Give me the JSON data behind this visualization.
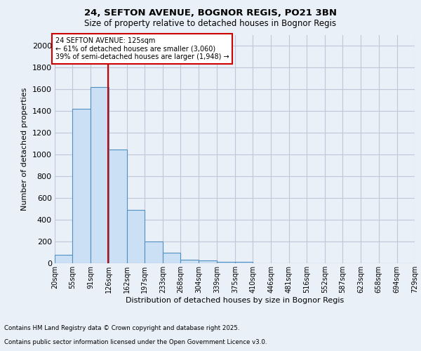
{
  "title1": "24, SEFTON AVENUE, BOGNOR REGIS, PO21 3BN",
  "title2": "Size of property relative to detached houses in Bognor Regis",
  "xlabel": "Distribution of detached houses by size in Bognor Regis",
  "ylabel": "Number of detached properties",
  "bin_labels": [
    "20sqm",
    "55sqm",
    "91sqm",
    "126sqm",
    "162sqm",
    "197sqm",
    "233sqm",
    "268sqm",
    "304sqm",
    "339sqm",
    "375sqm",
    "410sqm",
    "446sqm",
    "481sqm",
    "516sqm",
    "552sqm",
    "587sqm",
    "623sqm",
    "658sqm",
    "694sqm",
    "729sqm"
  ],
  "bin_edges": [
    20,
    55,
    91,
    126,
    162,
    197,
    233,
    268,
    304,
    339,
    375,
    410,
    446,
    481,
    516,
    552,
    587,
    623,
    658,
    694,
    729
  ],
  "values": [
    80,
    1420,
    1620,
    1050,
    490,
    200,
    100,
    35,
    25,
    15,
    15,
    0,
    0,
    0,
    0,
    0,
    0,
    0,
    0,
    0
  ],
  "bar_color": "#cce0f5",
  "bar_edge_color": "#5090c0",
  "grid_color": "#c0c8d8",
  "background_color": "#eaf0f8",
  "red_line_x": 125,
  "annotation_title": "24 SEFTON AVENUE: 125sqm",
  "annotation_line1": "← 61% of detached houses are smaller (3,060)",
  "annotation_line2": "39% of semi-detached houses are larger (1,948) →",
  "annotation_box_color": "#ffffff",
  "annotation_edge_color": "#cc0000",
  "red_line_color": "#cc0000",
  "footer1": "Contains HM Land Registry data © Crown copyright and database right 2025.",
  "footer2": "Contains public sector information licensed under the Open Government Licence v3.0.",
  "ylim": [
    0,
    2100
  ],
  "yticks": [
    0,
    200,
    400,
    600,
    800,
    1000,
    1200,
    1400,
    1600,
    1800,
    2000
  ]
}
